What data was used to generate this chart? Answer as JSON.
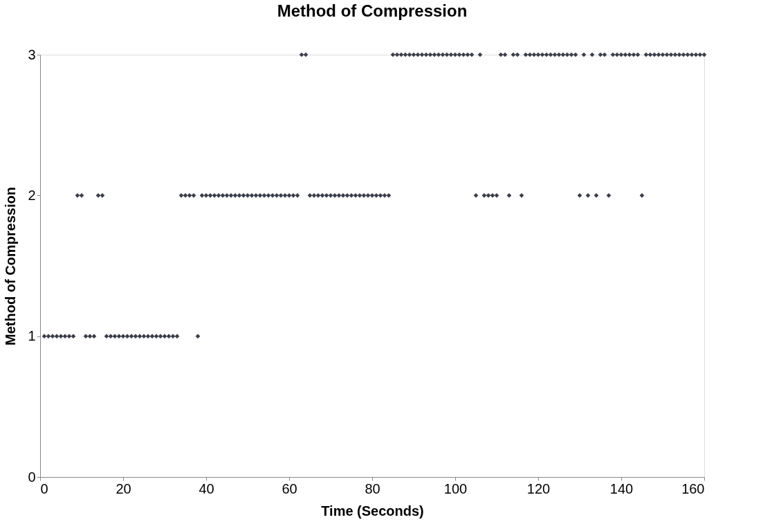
{
  "chart_data": {
    "type": "scatter",
    "title": "Method of Compression",
    "xlabel": "Time (Seconds)",
    "ylabel": "Method of Compression",
    "x": [
      1,
      2,
      3,
      4,
      5,
      6,
      7,
      8,
      9,
      10,
      11,
      12,
      13,
      14,
      15,
      16,
      17,
      18,
      19,
      20,
      21,
      22,
      23,
      24,
      25,
      26,
      27,
      28,
      29,
      30,
      31,
      32,
      33,
      34,
      35,
      36,
      37,
      38,
      39,
      40,
      41,
      42,
      43,
      44,
      45,
      46,
      47,
      48,
      49,
      50,
      51,
      52,
      53,
      54,
      55,
      56,
      57,
      58,
      59,
      60,
      61,
      62,
      63,
      64,
      65,
      66,
      67,
      68,
      69,
      70,
      71,
      72,
      73,
      74,
      75,
      76,
      77,
      78,
      79,
      80,
      81,
      82,
      83,
      84,
      85,
      86,
      87,
      88,
      89,
      90,
      91,
      92,
      93,
      94,
      95,
      96,
      97,
      98,
      99,
      100,
      101,
      102,
      103,
      104,
      105,
      106,
      107,
      108,
      109,
      110,
      111,
      112,
      113,
      114,
      115,
      116,
      117,
      118,
      119,
      120,
      121,
      122,
      123,
      124,
      125,
      126,
      127,
      128,
      129,
      130,
      131,
      132,
      133,
      134,
      135,
      136,
      137,
      138,
      139,
      140,
      141,
      142,
      143,
      144,
      145,
      146,
      147,
      148,
      149,
      150,
      151,
      152,
      153,
      154,
      155,
      156,
      157,
      158,
      159,
      160
    ],
    "series": [
      {
        "color": "#3a3d4a",
        "values": [
          1,
          1,
          1,
          1,
          1,
          1,
          1,
          1,
          2,
          2,
          1,
          1,
          1,
          2,
          2,
          1,
          1,
          1,
          1,
          1,
          1,
          1,
          1,
          1,
          1,
          1,
          1,
          1,
          1,
          1,
          1,
          1,
          1,
          2,
          2,
          2,
          2,
          1,
          2,
          2,
          2,
          2,
          2,
          2,
          2,
          2,
          2,
          2,
          2,
          2,
          2,
          2,
          2,
          2,
          2,
          2,
          2,
          2,
          2,
          2,
          2,
          2,
          3,
          3,
          2,
          2,
          2,
          2,
          2,
          2,
          2,
          2,
          2,
          2,
          2,
          2,
          2,
          2,
          2,
          2,
          2,
          2,
          2,
          2,
          3,
          3,
          3,
          3,
          3,
          3,
          3,
          3,
          3,
          3,
          3,
          3,
          3,
          3,
          3,
          3,
          3,
          3,
          3,
          3,
          2,
          3,
          2,
          2,
          2,
          2,
          3,
          3,
          2,
          3,
          3,
          2,
          3,
          3,
          3,
          3,
          3,
          3,
          3,
          3,
          3,
          3,
          3,
          3,
          3,
          2,
          3,
          2,
          3,
          2,
          3,
          3,
          2,
          3,
          3,
          3,
          3,
          3,
          3,
          3,
          2,
          3,
          3,
          3,
          3,
          3,
          3,
          3,
          3,
          3,
          3,
          3,
          3,
          3,
          3,
          3
        ]
      }
    ],
    "xlim": [
      0,
      160
    ],
    "xticks": [
      0,
      20,
      40,
      60,
      80,
      100,
      120,
      140,
      160
    ],
    "ylim": [
      0,
      3
    ],
    "yticks": [
      0,
      1,
      2,
      3
    ],
    "grid": false,
    "legend": false,
    "marker": "diamond"
  }
}
